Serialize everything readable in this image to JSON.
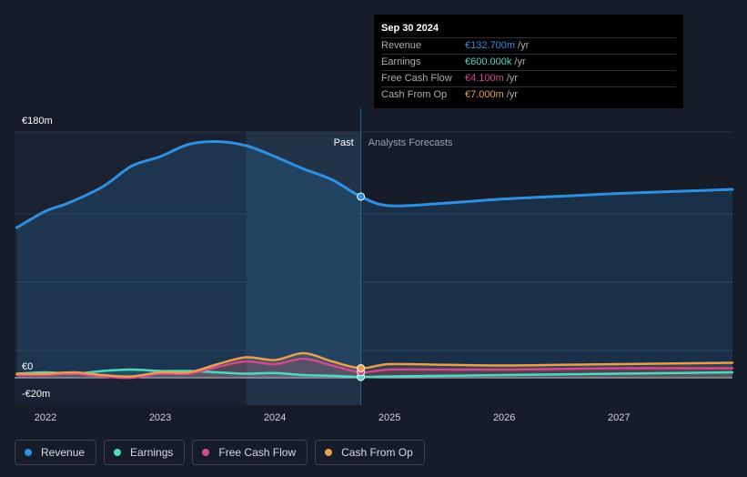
{
  "chart_data": {
    "type": "line",
    "y_unit": "€",
    "y_tick_labels": [
      {
        "label": "€180m",
        "value": 180
      },
      {
        "label": "€0",
        "value": 0
      },
      {
        "label": "-€20m",
        "value": -20
      }
    ],
    "ylim": [
      -20,
      180
    ],
    "x_tick_labels": [
      "2022",
      "2023",
      "2024",
      "2025",
      "2026",
      "2027"
    ],
    "xlim": [
      2021.73,
      2027.99
    ],
    "past_label": "Past",
    "forecast_label": "Analysts Forecasts",
    "divider_x": 2024.75,
    "series": [
      {
        "name": "Revenue",
        "color": "#2f8fe0",
        "x": [
          2021.75,
          2022.0,
          2022.2,
          2022.5,
          2022.75,
          2023.0,
          2023.25,
          2023.5,
          2023.75,
          2024.0,
          2024.25,
          2024.5,
          2024.75,
          2025.0,
          2025.5,
          2026.0,
          2026.5,
          2027.0,
          2027.5,
          2028.0
        ],
        "y": [
          110,
          122,
          128,
          140,
          155,
          162,
          171,
          173,
          170,
          162,
          153,
          145,
          132.7,
          126,
          128,
          131,
          133,
          135,
          136.5,
          138
        ]
      },
      {
        "name": "Earnings",
        "color": "#4fd8c0",
        "x": [
          2021.75,
          2022.0,
          2022.25,
          2022.5,
          2022.75,
          2023.0,
          2023.25,
          2023.5,
          2023.75,
          2024.0,
          2024.25,
          2024.5,
          2024.75,
          2025.0,
          2025.5,
          2026.0,
          2026.5,
          2027.0,
          2027.5,
          2028.0
        ],
        "y": [
          3,
          4,
          3,
          5,
          6,
          5,
          5,
          4,
          3,
          3.5,
          2,
          1.5,
          0.6,
          1,
          1.5,
          2,
          2.5,
          3,
          3.5,
          4
        ]
      },
      {
        "name": "Free Cash Flow",
        "color": "#d04a8e",
        "x": [
          2021.75,
          2022.0,
          2022.25,
          2022.5,
          2022.75,
          2023.0,
          2023.25,
          2023.5,
          2023.75,
          2024.0,
          2024.25,
          2024.5,
          2024.75,
          2025.0,
          2025.5,
          2026.0,
          2026.5,
          2027.0,
          2027.5,
          2028.0
        ],
        "y": [
          2,
          2,
          3,
          1,
          0,
          3,
          3,
          8,
          12,
          10,
          14,
          9,
          4.1,
          6,
          6,
          6,
          6.5,
          7,
          7,
          7
        ]
      },
      {
        "name": "Cash From Op",
        "color": "#e8a050",
        "x": [
          2021.75,
          2022.0,
          2022.25,
          2022.5,
          2022.75,
          2023.0,
          2023.25,
          2023.5,
          2023.75,
          2024.0,
          2024.25,
          2024.5,
          2024.75,
          2025.0,
          2025.5,
          2026.0,
          2026.5,
          2027.0,
          2027.5,
          2028.0
        ],
        "y": [
          3,
          3,
          4,
          2,
          1,
          4,
          4,
          10,
          15,
          13,
          18,
          12,
          7.0,
          10,
          9.5,
          9,
          9.5,
          10,
          10.5,
          11
        ]
      }
    ]
  },
  "tooltip": {
    "date": "Sep 30 2024",
    "rows": [
      {
        "label": "Revenue",
        "value": "€132.700m",
        "unit": "/yr",
        "color": "#2f8fe0"
      },
      {
        "label": "Earnings",
        "value": "€600.000k",
        "unit": "/yr",
        "color": "#4fd8c0"
      },
      {
        "label": "Free Cash Flow",
        "value": "€4.100m",
        "unit": "/yr",
        "color": "#d04a8e"
      },
      {
        "label": "Cash From Op",
        "value": "€7.000m",
        "unit": "/yr",
        "color": "#e8a050"
      }
    ]
  },
  "legend": [
    {
      "label": "Revenue",
      "color": "#2f8fe0"
    },
    {
      "label": "Earnings",
      "color": "#4fd8c0"
    },
    {
      "label": "Free Cash Flow",
      "color": "#d04a8e"
    },
    {
      "label": "Cash From Op",
      "color": "#e8a050"
    }
  ]
}
